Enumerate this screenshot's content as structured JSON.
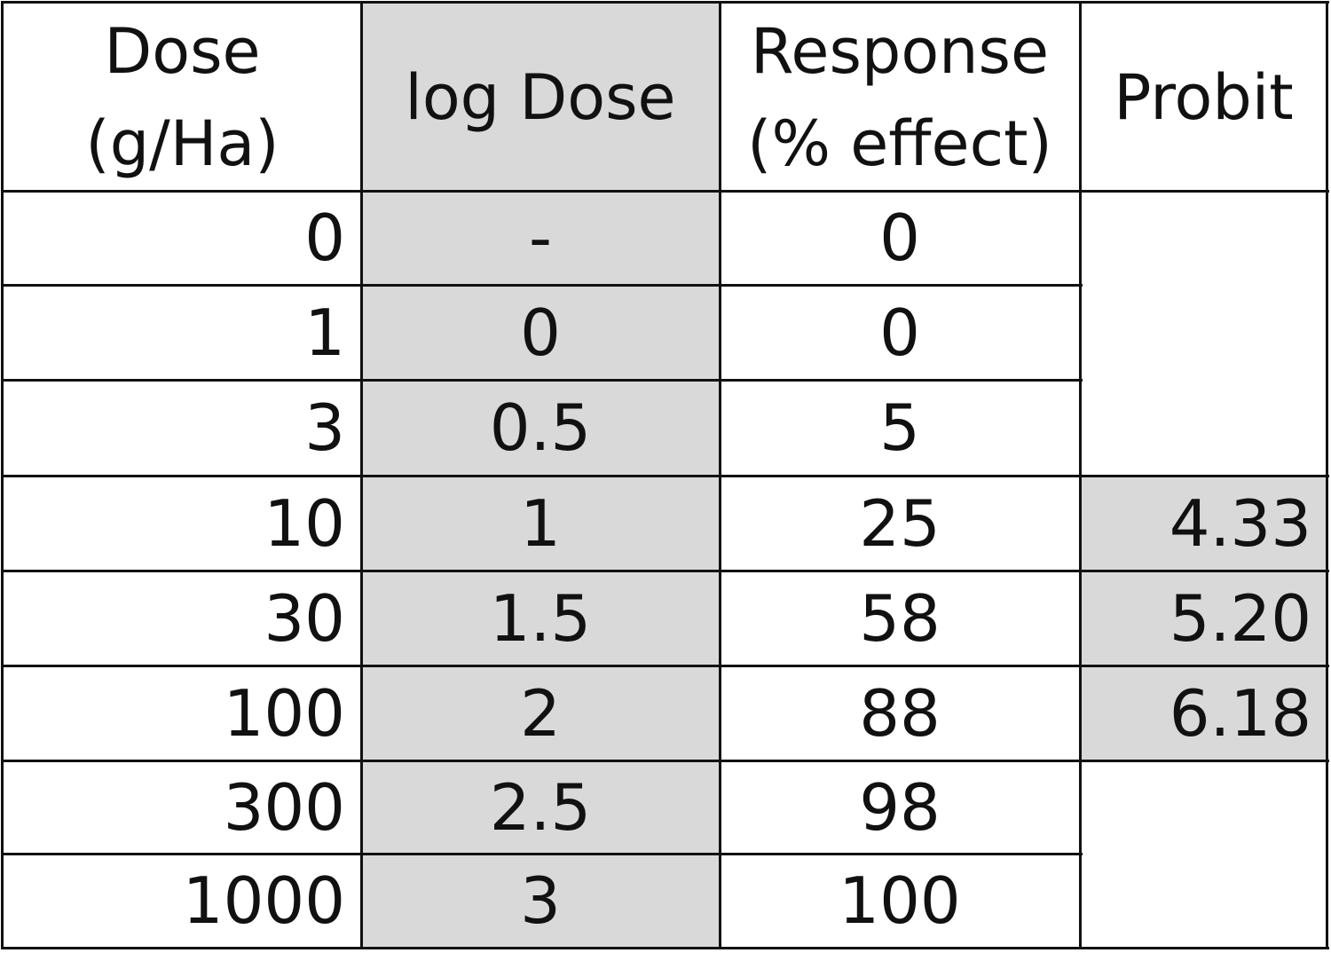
{
  "table": {
    "headers": {
      "dose": "Dose\n(g/Ha)",
      "log_dose": "log Dose",
      "response": "Response\n(% effect)",
      "probit": "Probit"
    },
    "rows": [
      {
        "dose": "0",
        "log_dose": "-",
        "response": "0",
        "probit": ""
      },
      {
        "dose": "1",
        "log_dose": "0",
        "response": "0",
        "probit": ""
      },
      {
        "dose": "3",
        "log_dose": "0.5",
        "response": "5",
        "probit": ""
      },
      {
        "dose": "10",
        "log_dose": "1",
        "response": "25",
        "probit": "4.33"
      },
      {
        "dose": "30",
        "log_dose": "1.5",
        "response": "58",
        "probit": "5.20"
      },
      {
        "dose": "100",
        "log_dose": "2",
        "response": "88",
        "probit": "6.18"
      },
      {
        "dose": "300",
        "log_dose": "2.5",
        "response": "98",
        "probit": ""
      },
      {
        "dose": "1000",
        "log_dose": "3",
        "response": "100",
        "probit": ""
      }
    ]
  },
  "colors": {
    "shade": "#d9d9d9",
    "border": "#111111",
    "background": "#ffffff"
  }
}
